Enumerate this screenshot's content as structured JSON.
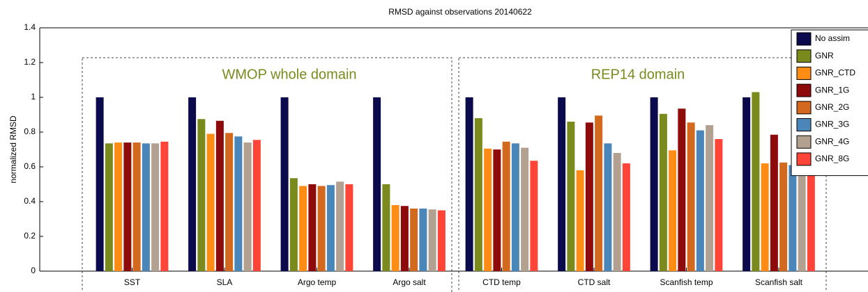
{
  "chart_data": {
    "type": "bar",
    "title": "RMSD against observations 20140622",
    "y_label": "normalized RMSD",
    "annotations": [
      "WMOP whole domain",
      "REP14 domain"
    ],
    "categories": [
      "SST",
      "SLA",
      "Argo temp",
      "Argo salt",
      "CTD temp",
      "CTD salt",
      "Scanfish temp",
      "Scanfish salt"
    ],
    "series": [
      {
        "name": "No assim",
        "color": "#0b0a4c",
        "values": [
          1,
          1,
          1,
          1,
          1,
          1,
          1,
          1
        ]
      },
      {
        "name": "GNR",
        "color": "#7a8a1c",
        "values": [
          0.735,
          0.875,
          0.535,
          0.5,
          0.88,
          0.86,
          0.905,
          1.03
        ]
      },
      {
        "name": "GNR_CTD",
        "color": "#ff8c14",
        "values": [
          0.74,
          0.79,
          0.49,
          0.38,
          0.705,
          0.58,
          0.695,
          0.62
        ]
      },
      {
        "name": "GNR_1G",
        "color": "#8e0b0b",
        "values": [
          0.74,
          0.865,
          0.5,
          0.375,
          0.7,
          0.855,
          0.935,
          0.785
        ]
      },
      {
        "name": "GNR_2G",
        "color": "#d2691e",
        "values": [
          0.74,
          0.795,
          0.49,
          0.36,
          0.745,
          0.895,
          0.855,
          0.625
        ]
      },
      {
        "name": "GNR_3G",
        "color": "#4a86b8",
        "values": [
          0.735,
          0.775,
          0.495,
          0.36,
          0.735,
          0.735,
          0.81,
          0.61
        ]
      },
      {
        "name": "GNR_4G",
        "color": "#b2a090",
        "values": [
          0.735,
          0.74,
          0.515,
          0.355,
          0.71,
          0.68,
          0.84,
          0.57
        ]
      },
      {
        "name": "GNR_8G",
        "color": "#ff4438",
        "values": [
          0.745,
          0.755,
          0.5,
          0.35,
          0.635,
          0.62,
          0.76,
          0.565
        ]
      }
    ],
    "ylim": [
      0,
      1.4
    ],
    "yticks": [
      0,
      0.2,
      0.4,
      0.6,
      0.8,
      1,
      1.2,
      1.4
    ],
    "legend": "upper right"
  }
}
